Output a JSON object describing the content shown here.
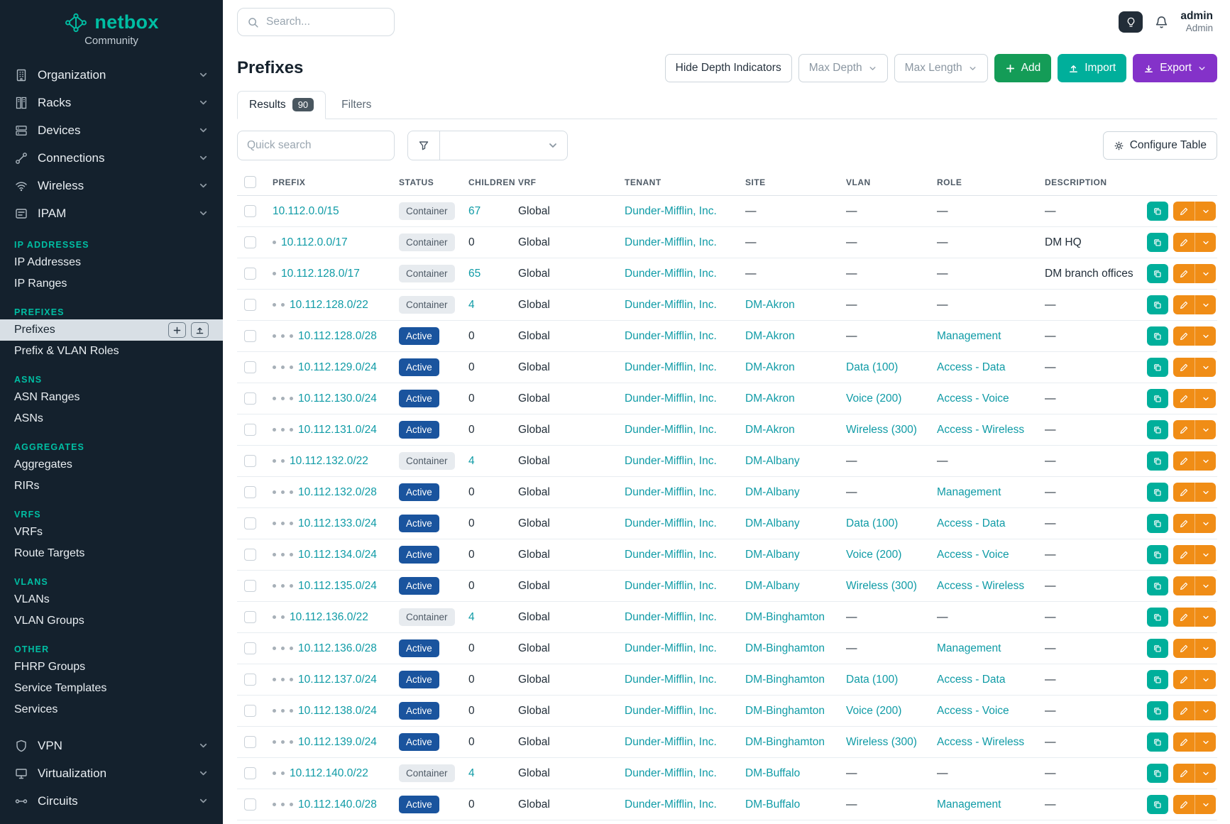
{
  "brand": {
    "name": "netbox",
    "subtitle": "Community"
  },
  "topbar": {
    "search_placeholder": "Search...",
    "user_name": "admin",
    "user_role": "Admin"
  },
  "sidebar": {
    "top_items": [
      {
        "label": "Organization",
        "icon": "building-icon"
      },
      {
        "label": "Racks",
        "icon": "rack-icon"
      },
      {
        "label": "Devices",
        "icon": "device-icon"
      },
      {
        "label": "Connections",
        "icon": "connections-icon"
      },
      {
        "label": "Wireless",
        "icon": "wifi-icon"
      },
      {
        "label": "IPAM",
        "icon": "ipam-icon"
      }
    ],
    "sections": [
      {
        "header": "IP ADDRESSES",
        "items": [
          {
            "label": "IP Addresses"
          },
          {
            "label": "IP Ranges"
          }
        ]
      },
      {
        "header": "PREFIXES",
        "items": [
          {
            "label": "Prefixes",
            "active": true
          },
          {
            "label": "Prefix & VLAN Roles"
          }
        ]
      },
      {
        "header": "ASNS",
        "items": [
          {
            "label": "ASN Ranges"
          },
          {
            "label": "ASNs"
          }
        ]
      },
      {
        "header": "AGGREGATES",
        "items": [
          {
            "label": "Aggregates"
          },
          {
            "label": "RIRs"
          }
        ]
      },
      {
        "header": "VRFS",
        "items": [
          {
            "label": "VRFs"
          },
          {
            "label": "Route Targets"
          }
        ]
      },
      {
        "header": "VLANS",
        "items": [
          {
            "label": "VLANs"
          },
          {
            "label": "VLAN Groups"
          }
        ]
      },
      {
        "header": "OTHER",
        "items": [
          {
            "label": "FHRP Groups"
          },
          {
            "label": "Service Templates"
          },
          {
            "label": "Services"
          }
        ]
      }
    ],
    "bottom_items": [
      {
        "label": "VPN",
        "icon": "vpn-icon"
      },
      {
        "label": "Virtualization",
        "icon": "virtualization-icon"
      },
      {
        "label": "Circuits",
        "icon": "circuits-icon"
      }
    ]
  },
  "page": {
    "title": "Prefixes",
    "controls": {
      "hide_depth": "Hide Depth Indicators",
      "max_depth": "Max Depth",
      "max_length": "Max Length",
      "add": "Add",
      "import": "Import",
      "export": "Export"
    },
    "tabs": {
      "results": "Results",
      "results_count": "90",
      "filters": "Filters"
    },
    "quick_search_placeholder": "Quick search",
    "configure_table": "Configure Table"
  },
  "table": {
    "columns": [
      "PREFIX",
      "STATUS",
      "CHILDREN",
      "VRF",
      "TENANT",
      "SITE",
      "VLAN",
      "ROLE",
      "DESCRIPTION"
    ],
    "rows": [
      {
        "depth": 0,
        "prefix": "10.112.0.0/15",
        "status": "Container",
        "children": "67",
        "vrf": "Global",
        "tenant": "Dunder-Mifflin, Inc.",
        "site": "—",
        "vlan": "—",
        "role": "—",
        "description": "—"
      },
      {
        "depth": 1,
        "prefix": "10.112.0.0/17",
        "status": "Container",
        "children": "0",
        "vrf": "Global",
        "tenant": "Dunder-Mifflin, Inc.",
        "site": "—",
        "vlan": "—",
        "role": "—",
        "description": "DM HQ"
      },
      {
        "depth": 1,
        "prefix": "10.112.128.0/17",
        "status": "Container",
        "children": "65",
        "vrf": "Global",
        "tenant": "Dunder-Mifflin, Inc.",
        "site": "—",
        "vlan": "—",
        "role": "—",
        "description": "DM branch offices"
      },
      {
        "depth": 2,
        "prefix": "10.112.128.0/22",
        "status": "Container",
        "children": "4",
        "vrf": "Global",
        "tenant": "Dunder-Mifflin, Inc.",
        "site": "DM-Akron",
        "vlan": "—",
        "role": "—",
        "description": "—"
      },
      {
        "depth": 3,
        "prefix": "10.112.128.0/28",
        "status": "Active",
        "children": "0",
        "vrf": "Global",
        "tenant": "Dunder-Mifflin, Inc.",
        "site": "DM-Akron",
        "vlan": "—",
        "role": "Management",
        "description": "—"
      },
      {
        "depth": 3,
        "prefix": "10.112.129.0/24",
        "status": "Active",
        "children": "0",
        "vrf": "Global",
        "tenant": "Dunder-Mifflin, Inc.",
        "site": "DM-Akron",
        "vlan": "Data (100)",
        "role": "Access - Data",
        "description": "—"
      },
      {
        "depth": 3,
        "prefix": "10.112.130.0/24",
        "status": "Active",
        "children": "0",
        "vrf": "Global",
        "tenant": "Dunder-Mifflin, Inc.",
        "site": "DM-Akron",
        "vlan": "Voice (200)",
        "role": "Access - Voice",
        "description": "—"
      },
      {
        "depth": 3,
        "prefix": "10.112.131.0/24",
        "status": "Active",
        "children": "0",
        "vrf": "Global",
        "tenant": "Dunder-Mifflin, Inc.",
        "site": "DM-Akron",
        "vlan": "Wireless (300)",
        "role": "Access - Wireless",
        "description": "—"
      },
      {
        "depth": 2,
        "prefix": "10.112.132.0/22",
        "status": "Container",
        "children": "4",
        "vrf": "Global",
        "tenant": "Dunder-Mifflin, Inc.",
        "site": "DM-Albany",
        "vlan": "—",
        "role": "—",
        "description": "—"
      },
      {
        "depth": 3,
        "prefix": "10.112.132.0/28",
        "status": "Active",
        "children": "0",
        "vrf": "Global",
        "tenant": "Dunder-Mifflin, Inc.",
        "site": "DM-Albany",
        "vlan": "—",
        "role": "Management",
        "description": "—"
      },
      {
        "depth": 3,
        "prefix": "10.112.133.0/24",
        "status": "Active",
        "children": "0",
        "vrf": "Global",
        "tenant": "Dunder-Mifflin, Inc.",
        "site": "DM-Albany",
        "vlan": "Data (100)",
        "role": "Access - Data",
        "description": "—"
      },
      {
        "depth": 3,
        "prefix": "10.112.134.0/24",
        "status": "Active",
        "children": "0",
        "vrf": "Global",
        "tenant": "Dunder-Mifflin, Inc.",
        "site": "DM-Albany",
        "vlan": "Voice (200)",
        "role": "Access - Voice",
        "description": "—"
      },
      {
        "depth": 3,
        "prefix": "10.112.135.0/24",
        "status": "Active",
        "children": "0",
        "vrf": "Global",
        "tenant": "Dunder-Mifflin, Inc.",
        "site": "DM-Albany",
        "vlan": "Wireless (300)",
        "role": "Access - Wireless",
        "description": "—"
      },
      {
        "depth": 2,
        "prefix": "10.112.136.0/22",
        "status": "Container",
        "children": "4",
        "vrf": "Global",
        "tenant": "Dunder-Mifflin, Inc.",
        "site": "DM-Binghamton",
        "vlan": "—",
        "role": "—",
        "description": "—"
      },
      {
        "depth": 3,
        "prefix": "10.112.136.0/28",
        "status": "Active",
        "children": "0",
        "vrf": "Global",
        "tenant": "Dunder-Mifflin, Inc.",
        "site": "DM-Binghamton",
        "vlan": "—",
        "role": "Management",
        "description": "—"
      },
      {
        "depth": 3,
        "prefix": "10.112.137.0/24",
        "status": "Active",
        "children": "0",
        "vrf": "Global",
        "tenant": "Dunder-Mifflin, Inc.",
        "site": "DM-Binghamton",
        "vlan": "Data (100)",
        "role": "Access - Data",
        "description": "—"
      },
      {
        "depth": 3,
        "prefix": "10.112.138.0/24",
        "status": "Active",
        "children": "0",
        "vrf": "Global",
        "tenant": "Dunder-Mifflin, Inc.",
        "site": "DM-Binghamton",
        "vlan": "Voice (200)",
        "role": "Access - Voice",
        "description": "—"
      },
      {
        "depth": 3,
        "prefix": "10.112.139.0/24",
        "status": "Active",
        "children": "0",
        "vrf": "Global",
        "tenant": "Dunder-Mifflin, Inc.",
        "site": "DM-Binghamton",
        "vlan": "Wireless (300)",
        "role": "Access - Wireless",
        "description": "—"
      },
      {
        "depth": 2,
        "prefix": "10.112.140.0/22",
        "status": "Container",
        "children": "4",
        "vrf": "Global",
        "tenant": "Dunder-Mifflin, Inc.",
        "site": "DM-Buffalo",
        "vlan": "—",
        "role": "—",
        "description": "—"
      },
      {
        "depth": 3,
        "prefix": "10.112.140.0/28",
        "status": "Active",
        "children": "0",
        "vrf": "Global",
        "tenant": "Dunder-Mifflin, Inc.",
        "site": "DM-Buffalo",
        "vlan": "—",
        "role": "Management",
        "description": "—"
      }
    ]
  },
  "colors": {
    "brand_teal": "#00bea3",
    "link_teal": "#0f9ba6",
    "active_badge": "#1a549e",
    "container_badge_bg": "#e7ebef",
    "add_green": "#149c57",
    "import_teal": "#00af9b",
    "export_purple": "#8432c9",
    "edit_orange": "#f08d16"
  }
}
